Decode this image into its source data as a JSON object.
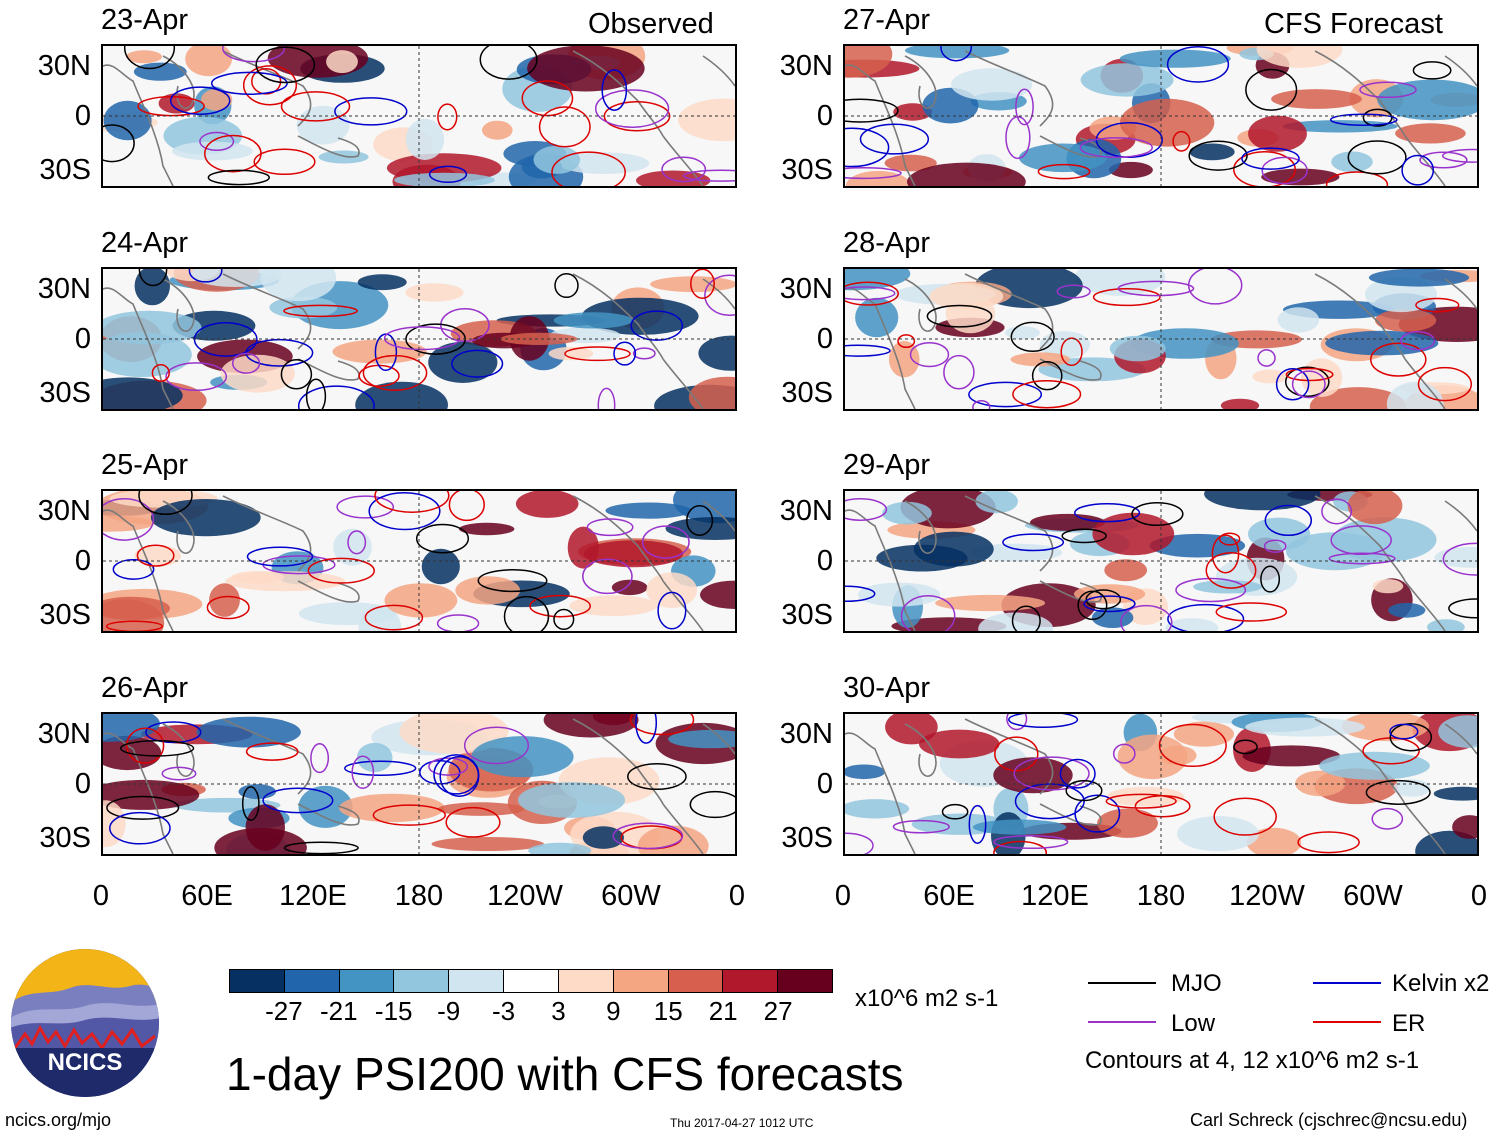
{
  "columns": {
    "observed_title": "Observed",
    "forecast_title": "CFS Forecast"
  },
  "panels": {
    "observed": [
      {
        "date": "23-Apr"
      },
      {
        "date": "24-Apr"
      },
      {
        "date": "25-Apr"
      },
      {
        "date": "26-Apr"
      }
    ],
    "forecast": [
      {
        "date": "27-Apr"
      },
      {
        "date": "28-Apr"
      },
      {
        "date": "29-Apr"
      },
      {
        "date": "30-Apr"
      }
    ]
  },
  "lat_labels": [
    "30N",
    "0",
    "30S"
  ],
  "lon_labels": [
    "0",
    "60E",
    "120E",
    "180",
    "120W",
    "60W",
    "0"
  ],
  "colorbar": {
    "colors": [
      "#053061",
      "#2166ac",
      "#4393c3",
      "#92c5de",
      "#d1e5f0",
      "#ffffff",
      "#fddbc7",
      "#f4a582",
      "#d6604d",
      "#b2182b",
      "#67001f"
    ],
    "labels": [
      "-27",
      "-21",
      "-15",
      "-9",
      "-3",
      "3",
      "9",
      "15",
      "21",
      "27"
    ],
    "units": "x10^6 m2 s-1"
  },
  "legend": {
    "items": [
      {
        "label": "MJO",
        "color": "#000000"
      },
      {
        "label": "Kelvin x2",
        "color": "#0000cc"
      },
      {
        "label": "Low",
        "color": "#9933cc"
      },
      {
        "label": "ER",
        "color": "#dd0000"
      }
    ],
    "contours_note": "Contours at 4, 12 x10^6 m2 s-1"
  },
  "title": "1-day PSI200 with CFS forecasts",
  "logo_text": "NCICS",
  "footer": {
    "url": "ncics.org/mjo",
    "timestamp": "Thu 2017-04-27 1012 UTC",
    "author": "Carl Schreck (cjschrec@ncsu.edu)"
  }
}
